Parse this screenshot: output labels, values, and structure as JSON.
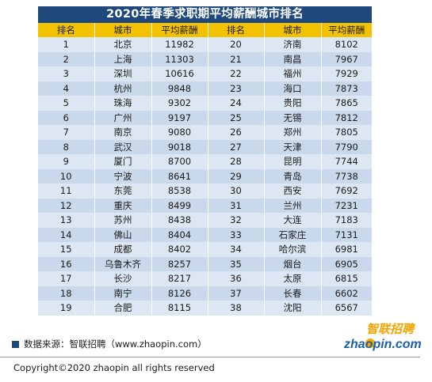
{
  "title": "2020年春季求职期平均薪酬城市排名",
  "headers": [
    "排名",
    "城市",
    "平均薪酬",
    "排名",
    "城市",
    "平均薪酬"
  ],
  "left": [
    [
      "1",
      "北京",
      "11982"
    ],
    [
      "2",
      "上海",
      "11303"
    ],
    [
      "3",
      "深圳",
      "10616"
    ],
    [
      "4",
      "杭州",
      "9848"
    ],
    [
      "5",
      "珠海",
      "9302"
    ],
    [
      "6",
      "广州",
      "9197"
    ],
    [
      "7",
      "南京",
      "9080"
    ],
    [
      "8",
      "武汉",
      "9018"
    ],
    [
      "9",
      "厦门",
      "8700"
    ],
    [
      "10",
      "宁波",
      "8641"
    ],
    [
      "11",
      "东莞",
      "8538"
    ],
    [
      "12",
      "重庆",
      "8499"
    ],
    [
      "13",
      "苏州",
      "8438"
    ],
    [
      "14",
      "佛山",
      "8404"
    ],
    [
      "15",
      "成都",
      "8402"
    ],
    [
      "16",
      "乌鲁木齐",
      "8257"
    ],
    [
      "17",
      "长沙",
      "8217"
    ],
    [
      "18",
      "南宁",
      "8126"
    ],
    [
      "19",
      "合肥",
      "8115"
    ]
  ],
  "right": [
    [
      "20",
      "济南",
      "8102"
    ],
    [
      "21",
      "南昌",
      "7967"
    ],
    [
      "22",
      "福州",
      "7929"
    ],
    [
      "23",
      "海口",
      "7873"
    ],
    [
      "24",
      "贵阳",
      "7865"
    ],
    [
      "25",
      "无锡",
      "7812"
    ],
    [
      "26",
      "郑州",
      "7805"
    ],
    [
      "27",
      "天津",
      "7790"
    ],
    [
      "28",
      "昆明",
      "7744"
    ],
    [
      "29",
      "青岛",
      "7738"
    ],
    [
      "30",
      "西安",
      "7692"
    ],
    [
      "31",
      "兰州",
      "7231"
    ],
    [
      "32",
      "大连",
      "7183"
    ],
    [
      "33",
      "石家庄",
      "7131"
    ],
    [
      "34",
      "哈尔滨",
      "6981"
    ],
    [
      "35",
      "烟台",
      "6905"
    ],
    [
      "36",
      "太原",
      "6815"
    ],
    [
      "37",
      "长春",
      "6602"
    ],
    [
      "38",
      "沈阳",
      "6567"
    ]
  ],
  "source": "数据来源：智联招聘（www.zhaopin.com）",
  "logo": {
    "top": "智联招聘",
    "bottom": "zhaopin.com",
    "icon": "zhaopin-logo"
  },
  "copyright": "Copyright©2020 zhaopin all rights reserved",
  "colors": {
    "title_bg": "#1f497d",
    "header_bg": "#f2c200",
    "row_light": "#dce7f3",
    "row_dark": "#c9d8ea",
    "logo_orange": "#f5a400",
    "logo_blue": "#1a5fa8"
  }
}
